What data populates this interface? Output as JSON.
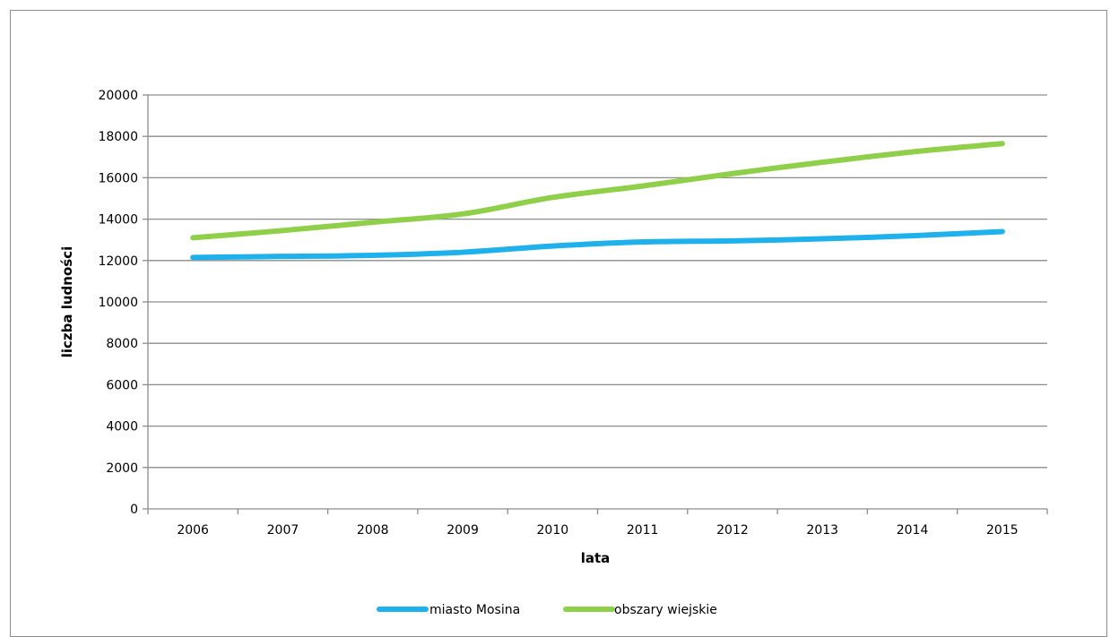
{
  "chart_data": {
    "type": "line",
    "title": "",
    "xlabel": "lata",
    "ylabel": "liczba ludności",
    "categories": [
      "2006",
      "2007",
      "2008",
      "2009",
      "2010",
      "2011",
      "2012",
      "2013",
      "2014",
      "2015"
    ],
    "y_ticks": [
      "0",
      "2000",
      "4000",
      "6000",
      "8000",
      "10000",
      "12000",
      "14000",
      "16000",
      "18000",
      "20000"
    ],
    "ylim": [
      0,
      20000
    ],
    "grid": true,
    "legend_position": "bottom",
    "series": [
      {
        "name": "miasto Mosina",
        "color": "#1fb1ec",
        "values": [
          12150,
          12200,
          12250,
          12400,
          12700,
          12900,
          12950,
          13050,
          13200,
          13400
        ]
      },
      {
        "name": "obszary wiejskie",
        "color": "#8fcf4a",
        "values": [
          13100,
          13450,
          13850,
          14250,
          15050,
          15600,
          16200,
          16750,
          17250,
          17650
        ]
      }
    ]
  }
}
